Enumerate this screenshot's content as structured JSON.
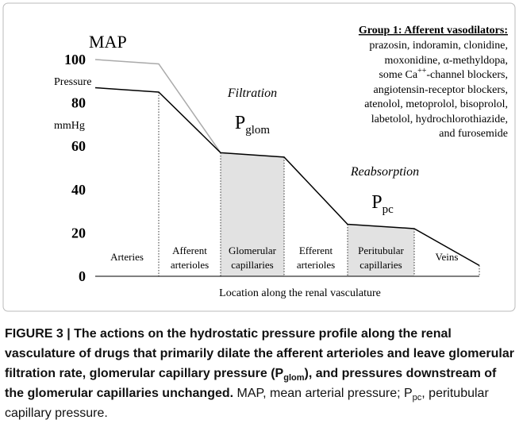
{
  "chart_data": {
    "type": "line",
    "y_label": [
      "Pressure",
      "mmHg"
    ],
    "x_label": "Location along the renal vasculature",
    "regions": [
      [
        "Arteries"
      ],
      [
        "Afferent",
        "arterioles"
      ],
      [
        "Glomerular",
        "capillaries"
      ],
      [
        "Efferent",
        "arterioles"
      ],
      [
        "Peritubular",
        "capillaries"
      ],
      [
        "Veins"
      ]
    ],
    "shaded_regions": [
      2,
      4
    ],
    "ylim": [
      0,
      100
    ],
    "yticks": [
      0,
      20,
      40,
      60,
      80,
      100
    ],
    "series": [
      {
        "name": "MAP",
        "color": "#aaaaaa",
        "values": [
          100,
          98,
          57,
          null,
          null,
          null,
          null
        ]
      },
      {
        "color": "#000000",
        "values": [
          87,
          85,
          57,
          55,
          24,
          22,
          5
        ]
      }
    ],
    "annotations": {
      "filtration": "Filtration",
      "p_glom": [
        "P",
        "glom"
      ],
      "reabsorption": "Reabsorption",
      "p_pc": [
        "P",
        "pc"
      ]
    },
    "group": {
      "title": "Group 1: Afferent vasodilators:",
      "lines": [
        "prazosin, indoramin, clonidine,",
        "moxonidine, α-methyldopa,",
        "some Ca",
        "++",
        "-channel blockers,",
        "angiotensin-receptor blockers,",
        "atenolol, metoprolol, bisoprolol,",
        "labetolol, hydrochlorothiazide,",
        "and furosemide"
      ]
    }
  },
  "caption": [
    "FIGURE 3 | The actions on the hydrostatic pressure profile along the renal vasculature of drugs that primarily dilate the afferent arterioles and leave glomerular filtration rate, glomerular capillary pressure (P",
    "glom",
    "), and pressures downstream of the glomerular capillaries unchanged.",
    " MAP, mean arterial pressure; P",
    "pc",
    ", peritubular capillary pressure."
  ]
}
